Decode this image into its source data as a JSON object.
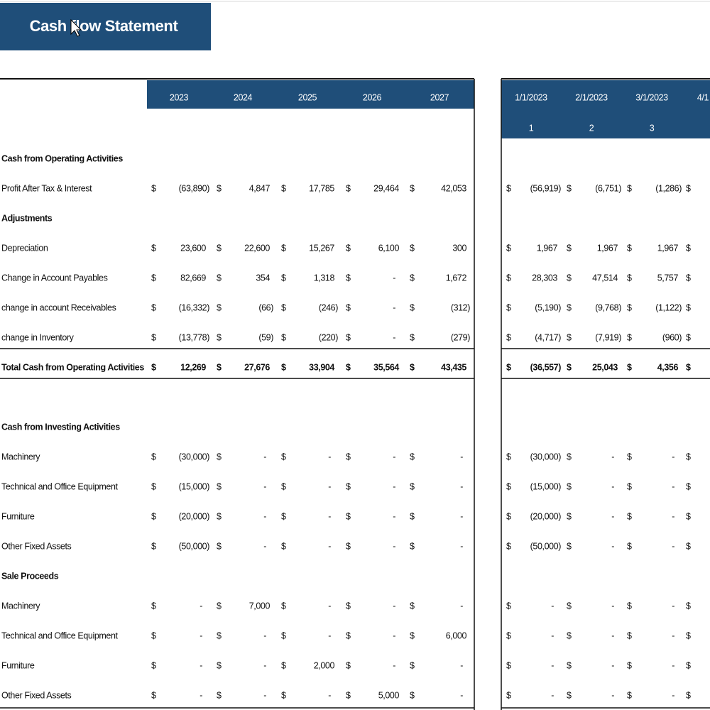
{
  "title": "Cash flow Statement",
  "currency": "$",
  "annual": {
    "headers": [
      "2023",
      "2024",
      "2025",
      "2026",
      "2027"
    ]
  },
  "monthly": {
    "dates": [
      "1/1/2023",
      "2/1/2023",
      "3/1/2023",
      "4/1"
    ],
    "periods": [
      1,
      2,
      3
    ]
  },
  "rows": [
    {
      "label": "Cash from Operating Activities"
    },
    {
      "label": "Profit After Tax & Interest",
      "annual": [
        "(63,890)",
        "4,847",
        "17,785",
        "29,464",
        "42,053"
      ],
      "monthly": [
        "(56,919)",
        "(6,751)",
        "(1,286)"
      ]
    },
    {
      "label": "Adjustments"
    },
    {
      "label": "Depreciation",
      "annual": [
        "23,600",
        "22,600",
        "15,267",
        "6,100",
        "300"
      ],
      "monthly": [
        "1,967",
        "1,967",
        "1,967"
      ]
    },
    {
      "label": "Change in Account Payables",
      "annual": [
        "82,669",
        "354",
        "1,318",
        "-",
        "1,672"
      ],
      "monthly": [
        "28,303",
        "47,514",
        "5,757"
      ]
    },
    {
      "label": "change in account Receivables",
      "annual": [
        "(16,332)",
        "(66)",
        "(246)",
        "-",
        "(312)"
      ],
      "monthly": [
        "(5,190)",
        "(9,768)",
        "(1,122)"
      ]
    },
    {
      "label": "change in  Inventory",
      "annual": [
        "(13,778)",
        "(59)",
        "(220)",
        "-",
        "(279)"
      ],
      "monthly": [
        "(4,717)",
        "(7,919)",
        "(960)"
      ]
    },
    {
      "label": "Total Cash from Operating Activities",
      "annual": [
        "12,269",
        "27,676",
        "33,904",
        "35,564",
        "43,435"
      ],
      "monthly": [
        "(36,557)",
        "25,043",
        "4,356"
      ]
    },
    {
      "label": "Cash from Investing Activities"
    },
    {
      "label": "Machinery",
      "annual": [
        "(30,000)",
        "-",
        "-",
        "-",
        "-"
      ],
      "monthly": [
        "(30,000)",
        "-",
        "-"
      ]
    },
    {
      "label": "Technical and Office Equipment",
      "annual": [
        "(15,000)",
        "-",
        "-",
        "-",
        "-"
      ],
      "monthly": [
        "(15,000)",
        "-",
        "-"
      ]
    },
    {
      "label": "Furniture",
      "annual": [
        "(20,000)",
        "-",
        "-",
        "-",
        "-"
      ],
      "monthly": [
        "(20,000)",
        "-",
        "-"
      ]
    },
    {
      "label": "Other Fixed Assets",
      "annual": [
        "(50,000)",
        "-",
        "-",
        "-",
        "-"
      ],
      "monthly": [
        "(50,000)",
        "-",
        "-"
      ]
    },
    {
      "label": "Sale Proceeds"
    },
    {
      "label": "Machinery",
      "annual": [
        "-",
        "7,000",
        "-",
        "-",
        "-"
      ],
      "monthly": [
        "-",
        "-",
        "-"
      ]
    },
    {
      "label": "Technical and Office Equipment",
      "annual": [
        "-",
        "-",
        "-",
        "-",
        "6,000"
      ],
      "monthly": [
        "-",
        "-",
        "-"
      ]
    },
    {
      "label": "Furniture",
      "annual": [
        "-",
        "-",
        "2,000",
        "-",
        "-"
      ],
      "monthly": [
        "-",
        "-",
        "-"
      ]
    },
    {
      "label": "Other Fixed Assets",
      "annual": [
        "-",
        "-",
        "-",
        "5,000",
        "-"
      ],
      "monthly": [
        "-",
        "-",
        "-"
      ]
    }
  ]
}
